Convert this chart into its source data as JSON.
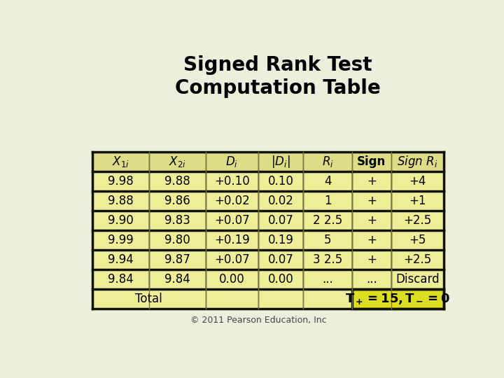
{
  "title": "Signed Rank Test\nComputation Table",
  "bg_color": "#EEEEDD",
  "cell_color_header": "#DDDD88",
  "cell_color_data": "#EEEE99",
  "cell_color_total_highlight": "#DDDD22",
  "border_color_thick": "#111100",
  "border_color_thin": "#777744",
  "text_color": "#000000",
  "footer": "© 2011 Pearson Education, Inc",
  "rows": [
    [
      "9.98",
      "9.88",
      "+0.10",
      "0.10",
      "4",
      "+",
      "+4"
    ],
    [
      "9.88",
      "9.86",
      "+0.02",
      "0.02",
      "1",
      "+",
      "+1"
    ],
    [
      "9.90",
      "9.83",
      "+0.07",
      "0.07",
      "2 2.5",
      "+",
      "+2.5"
    ],
    [
      "9.99",
      "9.80",
      "+0.19",
      "0.19",
      "5",
      "+",
      "+5"
    ],
    [
      "9.94",
      "9.87",
      "+0.07",
      "0.07",
      "3 2.5",
      "+",
      "+2.5"
    ],
    [
      "9.84",
      "9.84",
      "0.00",
      "0.00",
      "...",
      "...",
      "Discard"
    ]
  ],
  "total_label": "Total",
  "total_result": "T+= 15, T–= 0"
}
